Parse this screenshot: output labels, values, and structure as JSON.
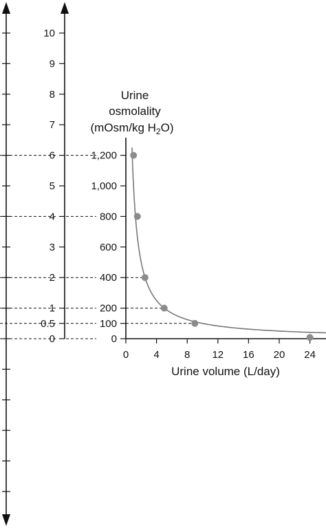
{
  "chart_data": {
    "type": "scatter",
    "title": "",
    "nomogram_scale": {
      "ticks": [
        0,
        0.5,
        1,
        2,
        3,
        4,
        5,
        6,
        7,
        8,
        9,
        10
      ],
      "tick_labels": [
        "0",
        "0.5",
        "1",
        "2",
        "3",
        "4",
        "5",
        "6",
        "7",
        "8",
        "9",
        "10"
      ]
    },
    "y_axis": {
      "label_line1": "Urine",
      "label_line2": "osmolality",
      "label_line3_prefix": "(mOsm/kg H",
      "label_line3_sub": "2",
      "label_line3_suffix": "O)",
      "ticks": [
        0,
        100,
        200,
        400,
        600,
        800,
        1000,
        1200
      ],
      "tick_labels": [
        "0",
        "100",
        "200",
        "400",
        "600",
        "800",
        "1,000",
        "1,200"
      ],
      "ylim": [
        0,
        1200
      ]
    },
    "x_axis": {
      "label": "Urine volume (L/day)",
      "ticks": [
        0,
        4,
        8,
        12,
        16,
        20,
        24
      ],
      "tick_labels": [
        "0",
        "4",
        "8",
        "12",
        "16",
        "20",
        "24"
      ],
      "xlim": [
        0,
        26.5
      ]
    },
    "series": [
      {
        "points": [
          {
            "x": 1,
            "y": 1200
          },
          {
            "x": 1.5,
            "y": 800
          },
          {
            "x": 2.5,
            "y": 400
          },
          {
            "x": 5,
            "y": 200
          },
          {
            "x": 9,
            "y": 100
          },
          {
            "x": 24,
            "y": 8
          }
        ]
      }
    ],
    "guides": [
      {
        "scale": 6,
        "osmolality": 1200
      },
      {
        "scale": 4,
        "osmolality": 800
      },
      {
        "scale": 2,
        "osmolality": 400,
        "x": 2.5
      },
      {
        "scale": 1,
        "osmolality": 200,
        "x": 5
      },
      {
        "scale": 0.5,
        "osmolality": 100,
        "x": 9
      },
      {
        "scale": 0,
        "osmolality": 0
      }
    ],
    "curve": {
      "relationship": "osmolality x volume = constant"
    },
    "grid": false,
    "legend": "none",
    "colors": {
      "ink": "#111111",
      "curve": "#777777",
      "points": "#8c8c8c"
    }
  }
}
